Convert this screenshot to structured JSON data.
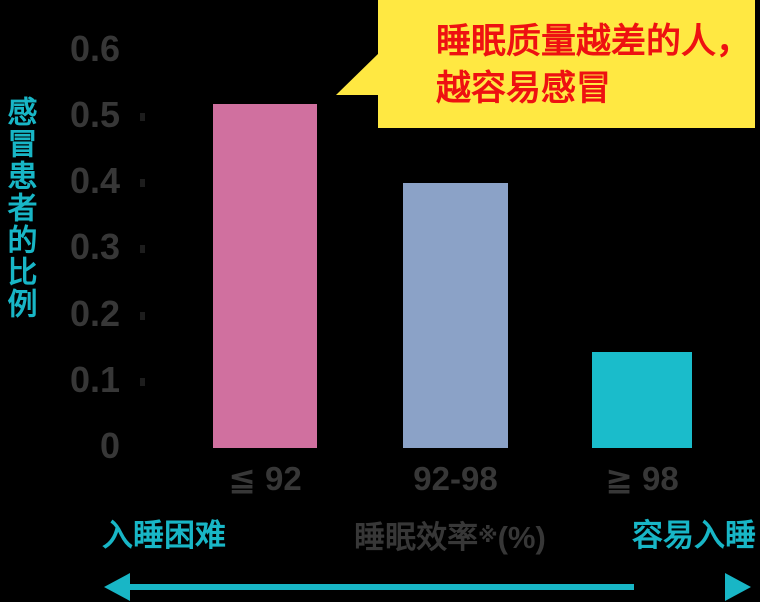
{
  "colors": {
    "background": "#000000",
    "accent_cyan": "#18b6c6",
    "label_gray": "#373737",
    "callout_yellow": "#ffe842",
    "callout_red": "#ee1111"
  },
  "callout": {
    "line1": "睡眠质量越差的人，",
    "line2": "越容易感冒"
  },
  "axis": {
    "ylabel": "感冒患者的比例",
    "xlabel_main": "睡眠效率",
    "xlabel_ref": "※",
    "xlabel_unit": "(%)",
    "left_note": "入睡困难",
    "right_note": "容易入睡"
  },
  "chart_data": {
    "type": "bar",
    "title": "",
    "categories": [
      "≦ 92",
      "92-98",
      "≧ 98"
    ],
    "values": [
      0.52,
      0.4,
      0.145
    ],
    "bar_colors": [
      "#d0709f",
      "#8ba2c7",
      "#1abccb"
    ],
    "xlabel": "睡眠效率※(%)",
    "ylabel": "感冒患者的比例",
    "ylim": [
      0,
      0.6
    ],
    "yticks": [
      0,
      0.1,
      0.2,
      0.3,
      0.4,
      0.5,
      0.6
    ],
    "grid": false,
    "legend": false,
    "annotation": "睡眠质量越差的人，越容易感冒",
    "x_left_note": "入睡困难",
    "x_right_note": "容易入睡"
  }
}
